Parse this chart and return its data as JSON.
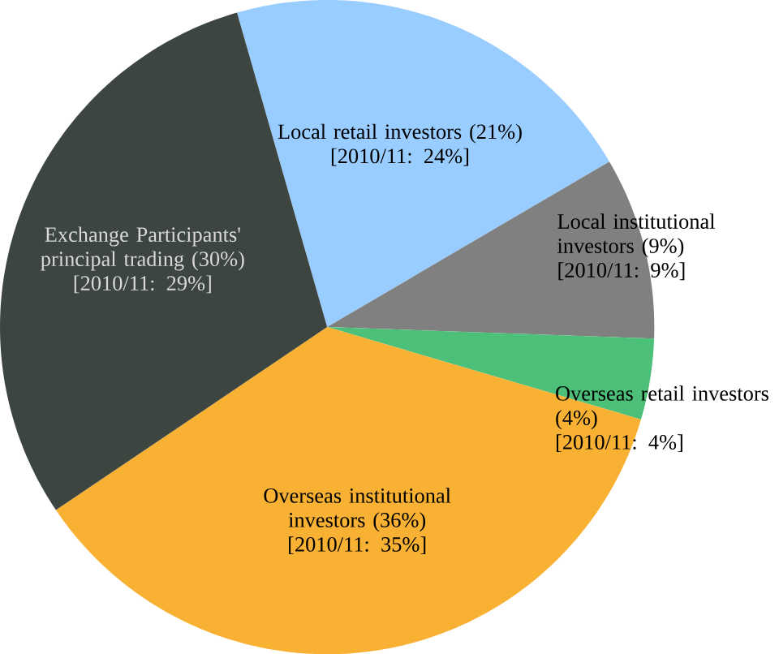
{
  "chart_data": {
    "type": "pie",
    "categories": [
      "Local retail investors",
      "Local institutional investors",
      "Overseas retail investors",
      "Overseas institutional investors",
      "Exchange Participants' principal trading"
    ],
    "values": [
      21,
      9,
      4,
      36,
      30
    ],
    "value_labels": [
      "(21%)",
      "(9%)",
      "(4%)",
      "(36%)",
      "(30%)"
    ],
    "colors": [
      "#99ccff",
      "#808080",
      "#4cbf78",
      "#f8b133",
      "#3d4541"
    ],
    "annotations": [
      "[2010/11:  24%]",
      "[2010/11:  9%]",
      "[2010/11:  4%]",
      "[2010/11:  35%]",
      "[2010/11:  29%]"
    ],
    "legend": false
  }
}
